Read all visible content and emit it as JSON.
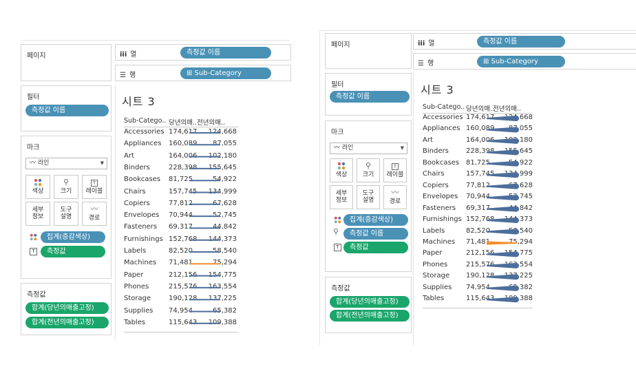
{
  "colors": {
    "pill_blue": "#4a91b6",
    "pill_green": "#1aa56b",
    "line_blue": "#4c6e9b",
    "line_orange": "#f28e2b"
  },
  "cards": {
    "pages": "페이지",
    "filters": "필터",
    "marks": "마크",
    "measure_values": "측정값"
  },
  "shelves": {
    "columns_label": "열",
    "rows_label": "행",
    "columns_pill": "측정값 이름",
    "rows_pill": "⊞ Sub-Category"
  },
  "filters": {
    "pill": "측정값 이름"
  },
  "marks": {
    "type": "〰 라인",
    "buttons": [
      "색상",
      "크기",
      "레이블",
      "세부\n정보",
      "도구\n설명",
      "경로"
    ],
    "buttons_left": [
      "색상",
      "크기",
      "레이블",
      "세부 정보",
      "도구 설명",
      "경로"
    ],
    "pills_left": [
      "집계(증감색상)",
      "측정값"
    ],
    "pills_right": [
      "집계(증감색상)",
      "측정값 이름",
      "측정값"
    ]
  },
  "measure_pills": [
    "합계(당년의매출고정)",
    "합계(전년의매출고정)"
  ],
  "sheet": {
    "title": "시트 3",
    "col_cat": "Sub-Catego..",
    "col_cur": "당년의매..",
    "col_prev": "전년의매..",
    "rows": [
      {
        "cat": "Accessories",
        "cur": "174,617",
        "prev": "124,668",
        "up": true
      },
      {
        "cat": "Appliances",
        "cur": "160,089",
        "prev": "87,055",
        "up": true
      },
      {
        "cat": "Art",
        "cur": "164,006",
        "prev": "102,180",
        "up": true
      },
      {
        "cat": "Binders",
        "cur": "228,398",
        "prev": "155,645",
        "up": true
      },
      {
        "cat": "Bookcases",
        "cur": "81,725",
        "prev": "54,922",
        "up": true
      },
      {
        "cat": "Chairs",
        "cur": "157,745",
        "prev": "134,999",
        "up": true
      },
      {
        "cat": "Copiers",
        "cur": "77,812",
        "prev": "67,628",
        "up": true
      },
      {
        "cat": "Envelopes",
        "cur": "70,944",
        "prev": "52,745",
        "up": true
      },
      {
        "cat": "Fasteners",
        "cur": "69,317",
        "prev": "44,842",
        "up": true
      },
      {
        "cat": "Furnishings",
        "cur": "152,768",
        "prev": "144,373",
        "up": true
      },
      {
        "cat": "Labels",
        "cur": "82,520",
        "prev": "58,540",
        "up": true
      },
      {
        "cat": "Machines",
        "cur": "71,481",
        "prev": "75,294",
        "up": false
      },
      {
        "cat": "Paper",
        "cur": "212,156",
        "prev": "154,775",
        "up": true
      },
      {
        "cat": "Phones",
        "cur": "215,576",
        "prev": "163,554",
        "up": true
      },
      {
        "cat": "Storage",
        "cur": "190,128",
        "prev": "137,225",
        "up": true
      },
      {
        "cat": "Supplies",
        "cur": "74,954",
        "prev": "65,382",
        "up": true
      },
      {
        "cat": "Tables",
        "cur": "115,643",
        "prev": "109,388",
        "up": true
      }
    ]
  }
}
